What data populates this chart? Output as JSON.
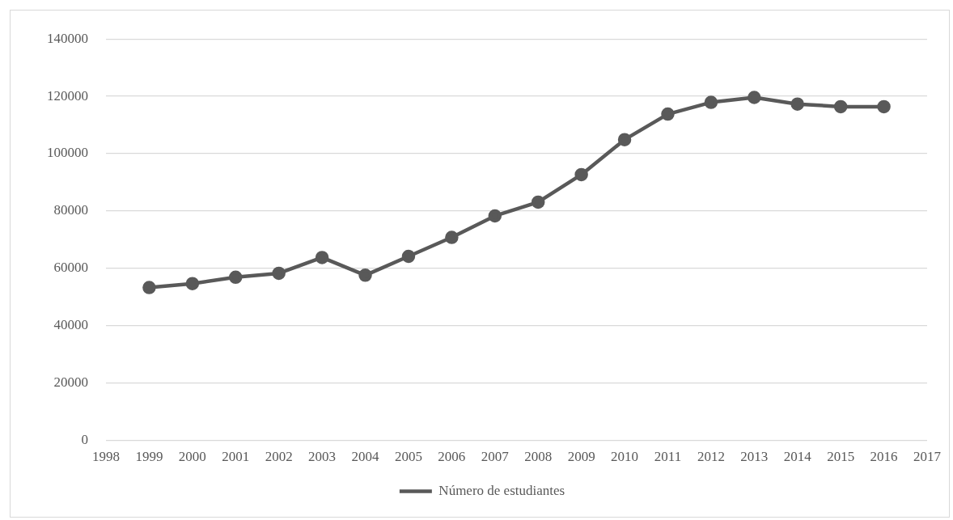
{
  "chart_data": {
    "type": "line",
    "categories": [
      "1998",
      "1999",
      "2000",
      "2001",
      "2002",
      "2003",
      "2004",
      "2005",
      "2006",
      "2007",
      "2008",
      "2009",
      "2010",
      "2011",
      "2012",
      "2013",
      "2014",
      "2015",
      "2016",
      "2017"
    ],
    "series": [
      {
        "name": "Número de estudiantes",
        "color": "#595959",
        "values": [
          null,
          53300,
          54700,
          56900,
          58300,
          63800,
          57600,
          64200,
          70800,
          78300,
          83100,
          92700,
          104900,
          113800,
          117900,
          119600,
          117300,
          116400,
          116400,
          null
        ]
      }
    ],
    "ylim": [
      0,
      140000
    ],
    "yticks": [
      0,
      20000,
      40000,
      60000,
      80000,
      100000,
      120000,
      140000
    ],
    "grid": "y",
    "legend": "bottom",
    "marker": "circle",
    "line_style": "solid"
  }
}
